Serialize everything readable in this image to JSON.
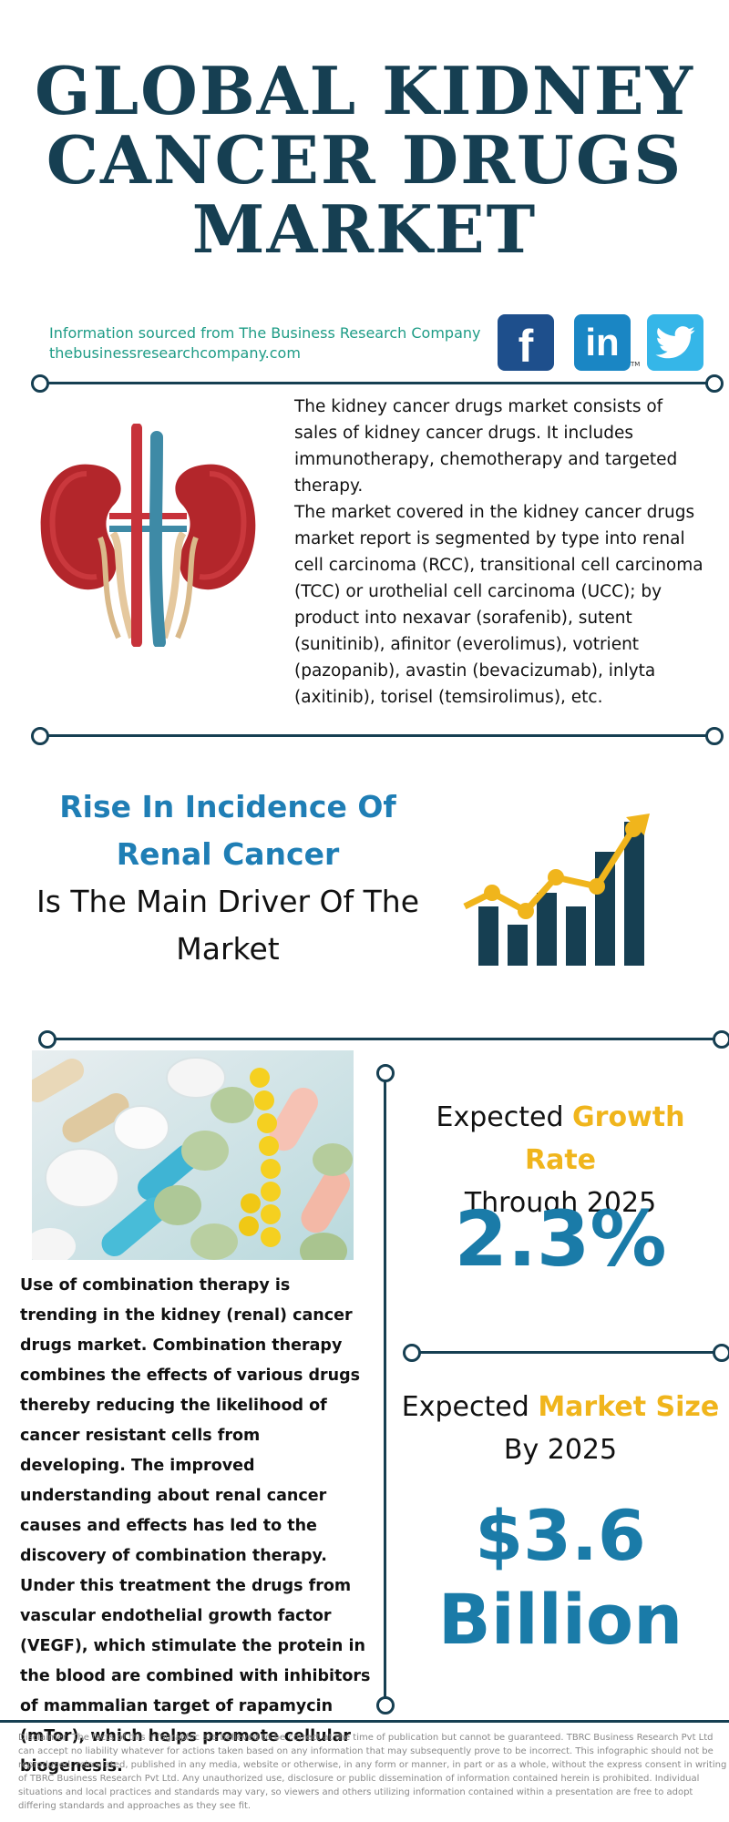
{
  "header": {
    "title_lines": [
      "GLOBAL KIDNEY",
      "CANCER DRUGS",
      "MARKET"
    ]
  },
  "source": {
    "line1": "Information sourced from The Business Research Company",
    "line2": "thebusinessresearchcompany.com"
  },
  "social": {
    "facebook_letter": "f",
    "linkedin_letters": "in",
    "linkedin_tm": "TM"
  },
  "description": {
    "para1": "The kidney cancer drugs market consists of sales of kidney cancer drugs. It includes immunotherapy, chemotherapy and targeted therapy.",
    "para2": "The market covered in the kidney cancer drugs market report is segmented by type into renal cell carcinoma (RCC), transitional cell carcinoma (TCC) or urothelial cell carcinoma (UCC); by product into nexavar (sorafenib), sutent (sunitinib), afinitor (everolimus), votrient (pazopanib), avastin (bevacizumab), inlyta (axitinib), torisel (temsirolimus), etc."
  },
  "driver": {
    "highlight": "Rise In Incidence Of Renal Cancer",
    "rest": "Is The Main Driver Of The Market"
  },
  "trend": {
    "text": "Use of combination therapy is trending in the kidney (renal) cancer drugs market. Combination therapy combines the effects of various drugs thereby reducing the likelihood of cancer resistant cells from developing. The improved understanding about renal cancer causes and effects has led to the discovery of combination therapy. Under this treatment the drugs from vascular endothelial growth factor (VEGF), which stimulate the protein in the blood are combined with inhibitors of mammalian target of rapamycin (mTor), which helps promote cellular biogenesis."
  },
  "growth": {
    "label_pre": "Expected ",
    "label_highlight": "Growth Rate",
    "label_line2": "Through 2025",
    "value": "2.3%"
  },
  "size": {
    "label_pre": "Expected ",
    "label_highlight": "Market Size",
    "label_line2": "By 2025",
    "value_line1": "$3.6",
    "value_line2": "Billion"
  },
  "disclaimer": "Disclaimer: The facts of this infographic are believed to be correct at the time of publication but cannot be guaranteed. TBRC Business Research Pvt Ltd can accept no liability whatever for actions taken based on any information that may subsequently prove to be incorrect. This infographic should not be reproduced, reirculated, published in any media, website or otherwise, in any form or manner, in part or as a whole, without the express consent in writing of TBRC Business Research Pvt Ltd. Any unauthorized use, disclosure or public dissemination of information contained herein is prohibited. Individual situations and local practices and standards may vary, so viewers and others utilizing information contained within a presentation are free to adopt differing standards and approaches as they see fit.",
  "colors": {
    "navy": "#163f52",
    "blue": "#1f7eb5",
    "teal_text": "#1e9c86",
    "yellow": "#f0b51c",
    "facebook": "#1e4f8c",
    "linkedin": "#1a86c4",
    "twitter": "#35b6e8"
  },
  "icons": [
    "facebook-icon",
    "linkedin-icon",
    "twitter-icon",
    "kidney-illustration",
    "growth-chart-icon",
    "pills-photo"
  ]
}
